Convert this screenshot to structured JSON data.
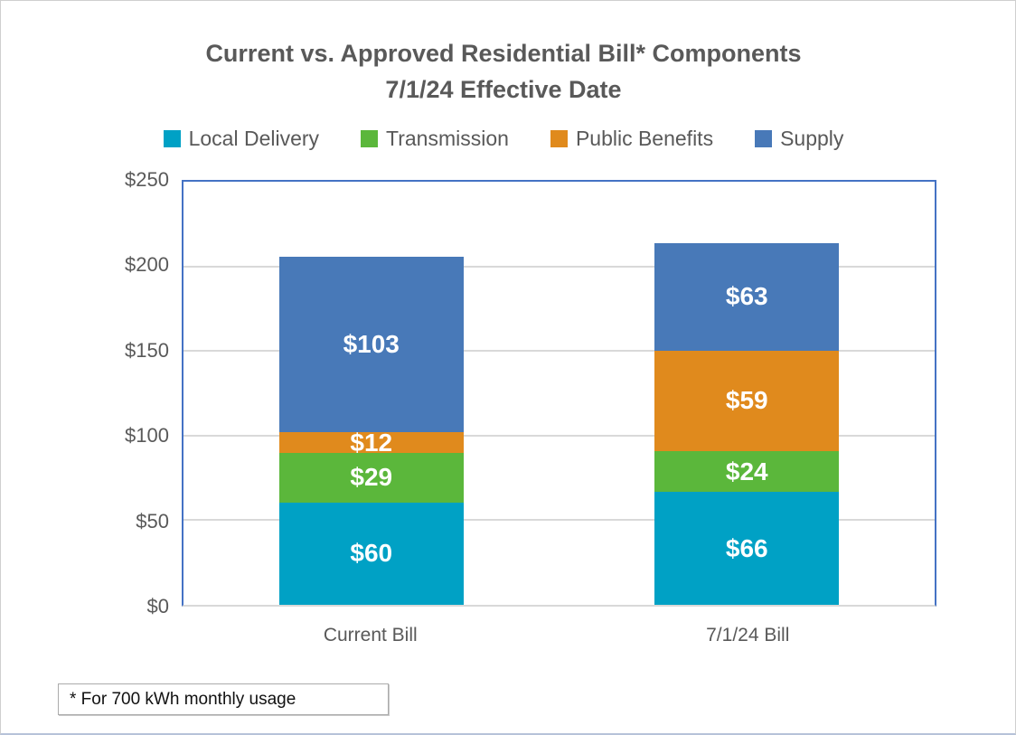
{
  "title": {
    "line1": "Current vs. Approved Residential Bill* Components",
    "line2": "7/1/24 Effective Date"
  },
  "footnote": "* For 700 kWh monthly usage",
  "colors": {
    "title_text": "#595959",
    "axis_text": "#595959",
    "plot_border": "#4472c4",
    "gridline": "#d9d9d9",
    "data_label_text": "#ffffff",
    "footnote_border": "#ababab"
  },
  "chart_data": {
    "type": "bar",
    "stacked": true,
    "title": "Current vs. Approved Residential Bill* Components 7/1/24 Effective Date",
    "categories": [
      "Current Bill",
      "7/1/24 Bill"
    ],
    "series": [
      {
        "name": "Local Delivery",
        "color": "#00a1c5",
        "values": [
          60,
          66
        ]
      },
      {
        "name": "Transmission",
        "color": "#5bb73b",
        "values": [
          29,
          24
        ]
      },
      {
        "name": "Public Benefits",
        "color": "#e08a1d",
        "values": [
          12,
          59
        ]
      },
      {
        "name": "Supply",
        "color": "#4879b8",
        "values": [
          103,
          63
        ]
      }
    ],
    "xlabel": "",
    "ylabel": "",
    "ylim": [
      0,
      250
    ],
    "ytick_step": 50,
    "ytick_prefix": "$",
    "data_label_prefix": "$",
    "grid": true,
    "legend_position": "top",
    "annotations": [
      "* For 700 kWh monthly usage"
    ]
  }
}
